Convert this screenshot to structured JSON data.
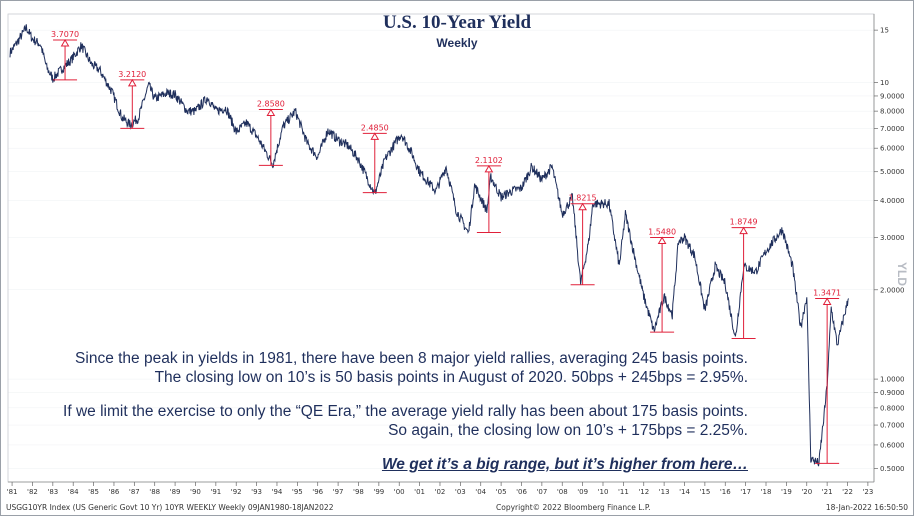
{
  "title": "U.S. 10-Year Yield",
  "subtitle": "Weekly",
  "notes": {
    "line1": "Since the peak in yields in 1981, there have been 8 major yield rallies, averaging 245 basis points.",
    "line2": "The closing low on 10’s is 50 basis points in August of 2020.  50bps + 245bps = 2.95%.",
    "line3": "If we limit the exercise to only the “QE Era,” the average yield rally has been about 175 basis points.",
    "line4": "So again, the closing low on 10’s + 175bps = 2.25%.",
    "line5": "We get it’s a big range, but it’s higher from here…"
  },
  "footer": {
    "left": "USGG10YR Index (US Generic Govt 10 Yr) 10YR WEEKLY  Weekly 09JAN1980-18JAN2022",
    "center": "Copyright© 2022 Bloomberg Finance L.P.",
    "right": "18-Jan-2022  16:50:50"
  },
  "side_label": "YLD",
  "colors": {
    "line": "#1f2f5c",
    "annotation": "#e0203a",
    "text": "#1f2f5c"
  },
  "chart_data": {
    "type": "line",
    "title": "U.S. 10-Year Yield",
    "subtitle": "Weekly",
    "yscale": "log",
    "ylim": [
      0.45,
      17
    ],
    "xlim": [
      1980.8,
      2023.3
    ],
    "yticks": [
      15,
      10,
      9.0,
      8.0,
      7.0,
      6.0,
      5.0,
      4.0,
      3.0,
      2.0,
      1.0,
      0.9,
      0.8,
      0.7,
      0.6,
      0.5
    ],
    "ytick_labels": [
      "15",
      "10",
      "9.0000",
      "8.0000",
      "7.0000",
      "6.0000",
      "5.0000",
      "4.0000",
      "3.0000",
      "2.0000",
      "1.0000",
      "0.9000",
      "0.8000",
      "0.7000",
      "0.6000",
      "0.5000"
    ],
    "xticks": [
      1981,
      1982,
      1983,
      1984,
      1985,
      1986,
      1987,
      1988,
      1989,
      1990,
      1991,
      1992,
      1993,
      1994,
      1995,
      1996,
      1997,
      1998,
      1999,
      2000,
      2001,
      2002,
      2003,
      2004,
      2005,
      2006,
      2007,
      2008,
      2009,
      2010,
      2011,
      2012,
      2013,
      2014,
      2015,
      2016,
      2017,
      2018,
      2019,
      2020,
      2021,
      2022,
      2023
    ],
    "xtick_labels": [
      "'81",
      "'82",
      "'83",
      "'84",
      "'85",
      "'86",
      "'87",
      "'88",
      "'89",
      "'90",
      "'91",
      "'92",
      "'93",
      "'94",
      "'95",
      "'96",
      "'97",
      "'98",
      "'99",
      "'00",
      "'01",
      "'02",
      "'03",
      "'04",
      "'05",
      "'06",
      "'07",
      "'08",
      "'09",
      "'10",
      "'11",
      "'12",
      "'13",
      "'14",
      "'15",
      "'16",
      "'17",
      "'18",
      "'19",
      "'20",
      "'21",
      "'22",
      "'23"
    ],
    "series": [
      {
        "values": [
          [
            1980.9,
            12.6
          ],
          [
            1981.3,
            13.8
          ],
          [
            1981.7,
            15.3
          ],
          [
            1982.0,
            14.0
          ],
          [
            1982.4,
            13.4
          ],
          [
            1982.7,
            11.2
          ],
          [
            1983.0,
            10.3
          ],
          [
            1983.5,
            11.2
          ],
          [
            1983.9,
            11.9
          ],
          [
            1984.4,
            13.3
          ],
          [
            1984.9,
            11.5
          ],
          [
            1985.3,
            11.0
          ],
          [
            1985.9,
            9.3
          ],
          [
            1986.4,
            7.6
          ],
          [
            1986.8,
            7.2
          ],
          [
            1987.2,
            7.6
          ],
          [
            1987.7,
            9.8
          ],
          [
            1988.0,
            8.8
          ],
          [
            1988.6,
            9.2
          ],
          [
            1989.0,
            9.1
          ],
          [
            1989.6,
            8.0
          ],
          [
            1990.0,
            8.0
          ],
          [
            1990.6,
            8.9
          ],
          [
            1991.0,
            8.0
          ],
          [
            1991.5,
            8.2
          ],
          [
            1992.0,
            6.8
          ],
          [
            1992.5,
            7.3
          ],
          [
            1993.0,
            6.6
          ],
          [
            1993.8,
            5.3
          ],
          [
            1994.3,
            7.1
          ],
          [
            1994.9,
            8.0
          ],
          [
            1995.5,
            6.2
          ],
          [
            1996.0,
            5.6
          ],
          [
            1996.5,
            6.9
          ],
          [
            1997.0,
            6.4
          ],
          [
            1997.5,
            6.1
          ],
          [
            1998.0,
            5.5
          ],
          [
            1998.8,
            4.2
          ],
          [
            1999.3,
            5.5
          ],
          [
            1999.9,
            6.4
          ],
          [
            2000.1,
            6.7
          ],
          [
            2000.6,
            5.8
          ],
          [
            2001.0,
            5.0
          ],
          [
            2001.8,
            4.3
          ],
          [
            2002.3,
            5.2
          ],
          [
            2002.8,
            3.7
          ],
          [
            2003.4,
            3.1
          ],
          [
            2003.7,
            4.5
          ],
          [
            2004.3,
            3.7
          ],
          [
            2004.5,
            4.8
          ],
          [
            2005.0,
            4.1
          ],
          [
            2005.5,
            4.3
          ],
          [
            2006.0,
            4.4
          ],
          [
            2006.5,
            5.2
          ],
          [
            2007.0,
            4.7
          ],
          [
            2007.5,
            5.2
          ],
          [
            2008.0,
            3.6
          ],
          [
            2008.5,
            4.1
          ],
          [
            2008.9,
            2.1
          ],
          [
            2009.3,
            2.9
          ],
          [
            2009.5,
            3.9
          ],
          [
            2010.3,
            3.9
          ],
          [
            2010.8,
            2.4
          ],
          [
            2011.1,
            3.6
          ],
          [
            2011.6,
            2.5
          ],
          [
            2012.0,
            1.9
          ],
          [
            2012.5,
            1.45
          ],
          [
            2013.0,
            1.9
          ],
          [
            2013.4,
            1.65
          ],
          [
            2013.7,
            2.9
          ],
          [
            2014.0,
            3.0
          ],
          [
            2014.5,
            2.6
          ],
          [
            2015.0,
            1.7
          ],
          [
            2015.5,
            2.4
          ],
          [
            2016.0,
            2.1
          ],
          [
            2016.5,
            1.37
          ],
          [
            2016.9,
            2.4
          ],
          [
            2017.5,
            2.3
          ],
          [
            2018.0,
            2.7
          ],
          [
            2018.8,
            3.2
          ],
          [
            2019.3,
            2.4
          ],
          [
            2019.7,
            1.5
          ],
          [
            2020.0,
            1.9
          ],
          [
            2020.2,
            0.54
          ],
          [
            2020.6,
            0.52
          ],
          [
            2021.0,
            0.95
          ],
          [
            2021.2,
            1.74
          ],
          [
            2021.5,
            1.3
          ],
          [
            2021.8,
            1.6
          ],
          [
            2022.05,
            1.87
          ]
        ]
      }
    ],
    "annotations": [
      {
        "label": "3.7070",
        "x": 1983.6,
        "low": 10.2,
        "high": 13.9
      },
      {
        "label": "3.2120",
        "x": 1986.9,
        "low": 7.0,
        "high": 10.2
      },
      {
        "label": "2.8580",
        "x": 1993.7,
        "low": 5.25,
        "high": 8.1
      },
      {
        "label": "2.4850",
        "x": 1998.8,
        "low": 4.25,
        "high": 6.73
      },
      {
        "label": "2.1102",
        "x": 2004.4,
        "low": 3.12,
        "high": 5.23
      },
      {
        "label": "1.8215",
        "x": 2009.0,
        "low": 2.08,
        "high": 3.9
      },
      {
        "label": "1.5480",
        "x": 2012.9,
        "low": 1.44,
        "high": 3.0
      },
      {
        "label": "1.8749",
        "x": 2016.9,
        "low": 1.37,
        "high": 3.24
      },
      {
        "label": "1.3471",
        "x": 2021.0,
        "low": 0.52,
        "high": 1.87
      }
    ]
  }
}
